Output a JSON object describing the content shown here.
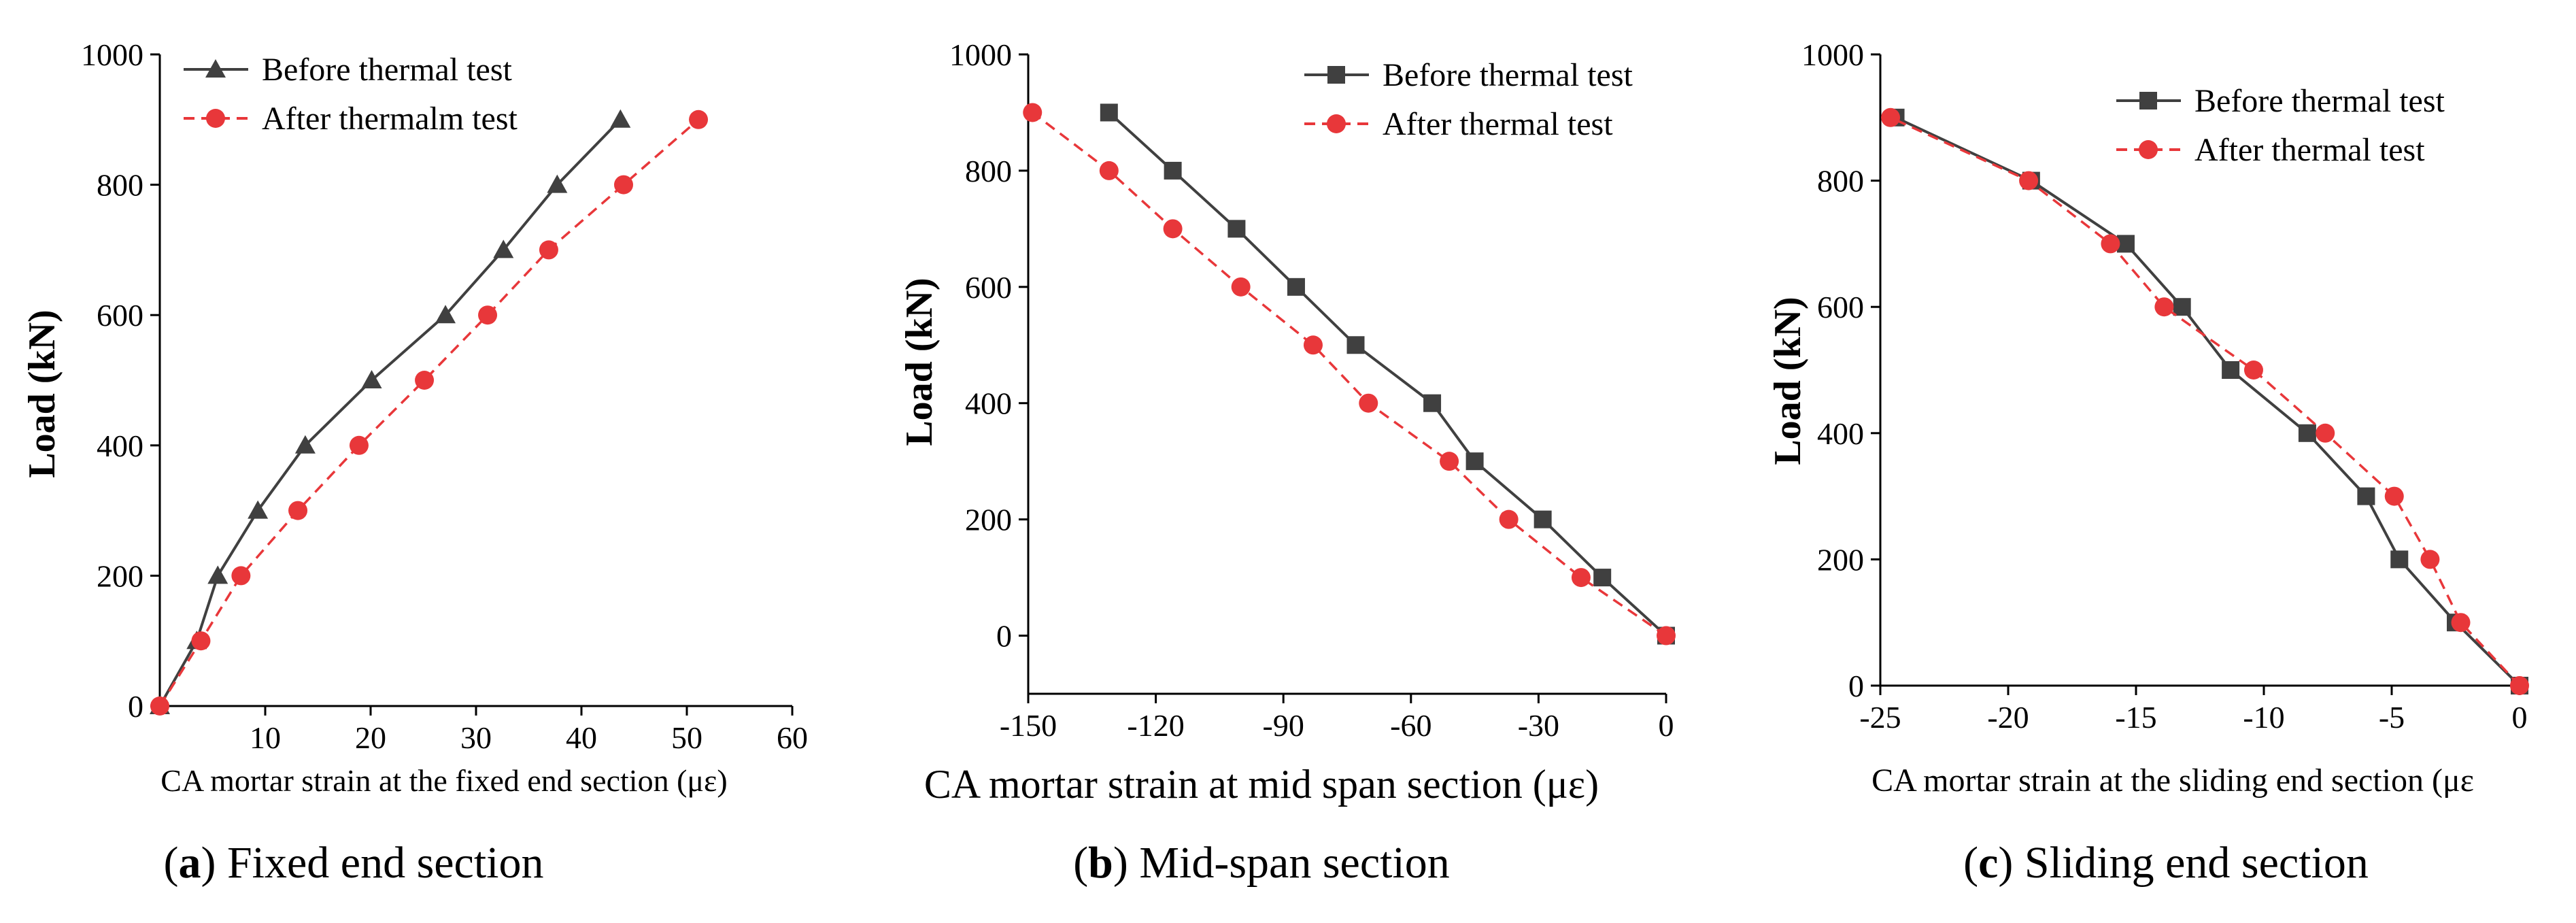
{
  "colors": {
    "before": "#404040",
    "after": "#e8373a",
    "axis": "#000000"
  },
  "chart_data": [
    {
      "type": "line",
      "caption": {
        "letter": "a",
        "text": " Fixed end section",
        "open": "(",
        "close": ")"
      },
      "xlabel": "CA mortar strain at the fixed end section (με)",
      "ylabel": "Load (kN)",
      "xlim": [
        0,
        60
      ],
      "ylim": [
        0,
        1000
      ],
      "xticks": [
        10,
        20,
        30,
        40,
        50,
        60
      ],
      "yticks": [
        0,
        200,
        400,
        600,
        800,
        1000
      ],
      "legend_position": "top-left",
      "series": [
        {
          "name": "Before thermal test",
          "marker": "triangle",
          "style": "solid",
          "x": [
            0,
            3.5,
            5.5,
            9.3,
            13.8,
            20.1,
            27.1,
            32.6,
            37.7,
            43.7
          ],
          "y": [
            0,
            100,
            200,
            300,
            400,
            500,
            600,
            700,
            800,
            900
          ]
        },
        {
          "name": "After thermalm test",
          "marker": "circle",
          "style": "dashed",
          "x": [
            0,
            3.9,
            7.7,
            13.1,
            18.9,
            25.1,
            31.1,
            36.9,
            44.0,
            51.1
          ],
          "y": [
            0,
            100,
            200,
            300,
            400,
            500,
            600,
            700,
            800,
            900
          ]
        }
      ]
    },
    {
      "type": "line",
      "caption": {
        "letter": "b",
        "text": " Mid-span section",
        "open": "(",
        "close": ")"
      },
      "xlabel": "CA mortar strain at mid span section (με)",
      "ylabel": "Load (kN)",
      "xlim": [
        -150,
        0
      ],
      "ylim": [
        -100,
        1000
      ],
      "xticks": [
        -150,
        -120,
        -90,
        -60,
        -30,
        0
      ],
      "yticks": [
        0,
        200,
        400,
        600,
        800,
        1000
      ],
      "legend_position": "top-right",
      "series": [
        {
          "name": "Before thermal test",
          "marker": "square",
          "style": "solid",
          "x": [
            0,
            -15,
            -29,
            -45,
            -55,
            -73,
            -87,
            -101,
            -116,
            -131
          ],
          "y": [
            0,
            100,
            200,
            300,
            400,
            500,
            600,
            700,
            800,
            900
          ]
        },
        {
          "name": "After thermal test",
          "marker": "circle",
          "style": "dashed",
          "x": [
            0,
            -20,
            -37,
            -51,
            -70,
            -83,
            -100,
            -116,
            -131,
            -149
          ],
          "y": [
            0,
            100,
            200,
            300,
            400,
            500,
            600,
            700,
            800,
            900
          ]
        }
      ]
    },
    {
      "type": "line",
      "caption": {
        "letter": "c",
        "text": " Sliding end section",
        "open": "(",
        "close": ")"
      },
      "xlabel": "CA mortar strain at the sliding end section (με",
      "ylabel": "Load (kN)",
      "xlim": [
        -25,
        0
      ],
      "ylim": [
        0,
        1000
      ],
      "xticks": [
        -25,
        -20,
        -15,
        -10,
        -5,
        0
      ],
      "yticks": [
        0,
        200,
        400,
        600,
        800,
        1000
      ],
      "legend_position": "top-right",
      "series": [
        {
          "name": "Before thermal test",
          "marker": "square",
          "style": "solid",
          "x": [
            0,
            -2.5,
            -4.7,
            -6.0,
            -8.3,
            -11.3,
            -13.2,
            -15.4,
            -19.1,
            -24.4
          ],
          "y": [
            0,
            100,
            200,
            300,
            400,
            500,
            600,
            700,
            800,
            900
          ]
        },
        {
          "name": "After thermal test",
          "marker": "circle",
          "style": "dashed",
          "x": [
            0,
            -2.3,
            -3.5,
            -4.9,
            -7.6,
            -10.4,
            -13.9,
            -16.0,
            -19.2,
            -24.6
          ],
          "y": [
            0,
            100,
            200,
            300,
            400,
            500,
            600,
            700,
            800,
            900
          ]
        }
      ]
    }
  ]
}
